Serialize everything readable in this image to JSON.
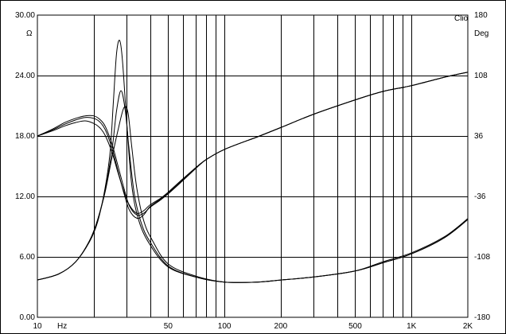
{
  "chart_data": {
    "type": "line",
    "brand": "Clio",
    "left_axis": {
      "unit": "Ω",
      "range": [
        0,
        30
      ],
      "ticks": [
        0,
        6,
        12,
        18,
        24,
        30
      ],
      "tick_labels": [
        "0.00",
        "6.00",
        "12.00",
        "18.00",
        "24.00",
        "30.00"
      ]
    },
    "right_axis": {
      "unit": "Deg",
      "range": [
        -180,
        180
      ],
      "ticks": [
        -180,
        -108,
        -36,
        36,
        108,
        180
      ],
      "tick_labels": [
        "-180",
        "-108",
        "-36",
        "36",
        "108",
        "180"
      ]
    },
    "x_axis": {
      "unit": "Hz",
      "scale": "log",
      "range": [
        10,
        2000
      ],
      "labeled_ticks": [
        10,
        50,
        100,
        200,
        500,
        1000,
        2000
      ],
      "tick_labels": [
        "10",
        "50",
        "100",
        "200",
        "500",
        "1K",
        "2K"
      ],
      "grid_lines": [
        20,
        30,
        40,
        50,
        60,
        70,
        80,
        90,
        100,
        200,
        300,
        400,
        500,
        600,
        700,
        800,
        900,
        1000
      ]
    },
    "grid": true,
    "series": [
      {
        "axis": "left",
        "x": [
          10,
          13,
          16,
          19,
          21,
          23,
          24.5,
          25.5,
          26.5,
          27.5,
          28.5,
          30,
          32,
          35,
          40,
          50,
          70,
          100,
          150,
          200,
          300,
          500,
          700,
          1000,
          1500,
          2000
        ],
        "values": [
          3.7,
          4.3,
          5.5,
          7.5,
          9.5,
          12.8,
          16.5,
          21.5,
          26.2,
          27.5,
          25.5,
          19.5,
          13.0,
          9.5,
          7.2,
          5.0,
          4.0,
          3.5,
          3.5,
          3.7,
          4.0,
          4.6,
          5.5,
          6.4,
          8.0,
          9.8
        ]
      },
      {
        "axis": "left",
        "x": [
          10,
          13,
          16,
          19,
          21,
          23,
          25,
          26.5,
          28,
          29.5,
          31,
          33,
          36,
          40,
          50,
          70,
          100,
          150,
          200,
          300,
          500,
          700,
          1000,
          1500,
          2000
        ],
        "values": [
          3.7,
          4.3,
          5.5,
          7.6,
          9.7,
          12.6,
          16.5,
          20.5,
          22.5,
          20.5,
          16.5,
          12.2,
          9.3,
          7.5,
          5.1,
          4.0,
          3.5,
          3.5,
          3.7,
          4.0,
          4.6,
          5.4,
          6.3,
          7.9,
          9.7
        ]
      },
      {
        "axis": "left",
        "x": [
          10,
          13,
          16,
          19,
          21,
          23,
          25,
          27,
          29,
          30.5,
          32,
          34,
          37,
          41,
          50,
          70,
          100,
          150,
          200,
          300,
          500,
          700,
          1000,
          1500,
          2000
        ],
        "values": [
          3.7,
          4.3,
          5.5,
          7.6,
          9.7,
          12.4,
          15.8,
          18.6,
          20.8,
          20.3,
          16.8,
          12.8,
          9.6,
          7.7,
          5.3,
          4.1,
          3.5,
          3.5,
          3.7,
          4.0,
          4.6,
          5.4,
          6.3,
          7.9,
          9.8
        ]
      },
      {
        "axis": "right",
        "x": [
          10,
          12,
          14,
          16,
          18,
          20,
          21.5,
          23,
          25,
          27,
          29,
          31,
          34,
          37,
          40,
          45,
          50,
          60,
          70,
          80,
          100,
          150,
          200,
          300,
          500,
          700,
          1000,
          1500,
          2000
        ],
        "values": [
          36,
          43,
          50,
          55,
          58,
          57,
          53,
          44,
          22,
          -6,
          -32,
          -52,
          -62,
          -58,
          -48,
          -40,
          -32,
          -16,
          -2,
          8,
          20,
          35,
          46,
          62,
          79,
          89,
          96,
          106,
          112
        ]
      },
      {
        "axis": "right",
        "x": [
          10,
          12,
          14,
          16,
          18,
          20,
          21.5,
          23,
          25,
          27,
          29,
          31,
          34,
          37,
          40,
          45,
          50,
          60,
          70,
          80,
          100,
          150,
          200,
          300,
          500,
          700,
          1000,
          1500,
          2000
        ],
        "values": [
          36,
          42,
          48,
          52,
          54,
          51,
          46,
          37,
          17,
          -8,
          -30,
          -46,
          -56,
          -53,
          -46,
          -39,
          -31,
          -15,
          -2,
          8,
          20,
          35,
          46,
          62,
          79,
          89,
          96,
          106,
          112
        ]
      },
      {
        "axis": "right",
        "x": [
          10,
          12,
          14,
          16,
          18,
          20,
          21.5,
          23,
          25,
          27,
          29,
          31,
          34,
          37,
          40,
          45,
          50,
          60,
          70,
          80,
          100,
          150,
          200,
          300,
          500,
          700,
          1000,
          1500,
          2000
        ],
        "values": [
          36,
          44,
          52,
          57,
          60,
          60,
          56,
          48,
          27,
          0,
          -26,
          -47,
          -58,
          -56,
          -49,
          -41,
          -33,
          -17,
          -3,
          8,
          20,
          35,
          46,
          62,
          79,
          89,
          96,
          106,
          112
        ]
      }
    ]
  }
}
